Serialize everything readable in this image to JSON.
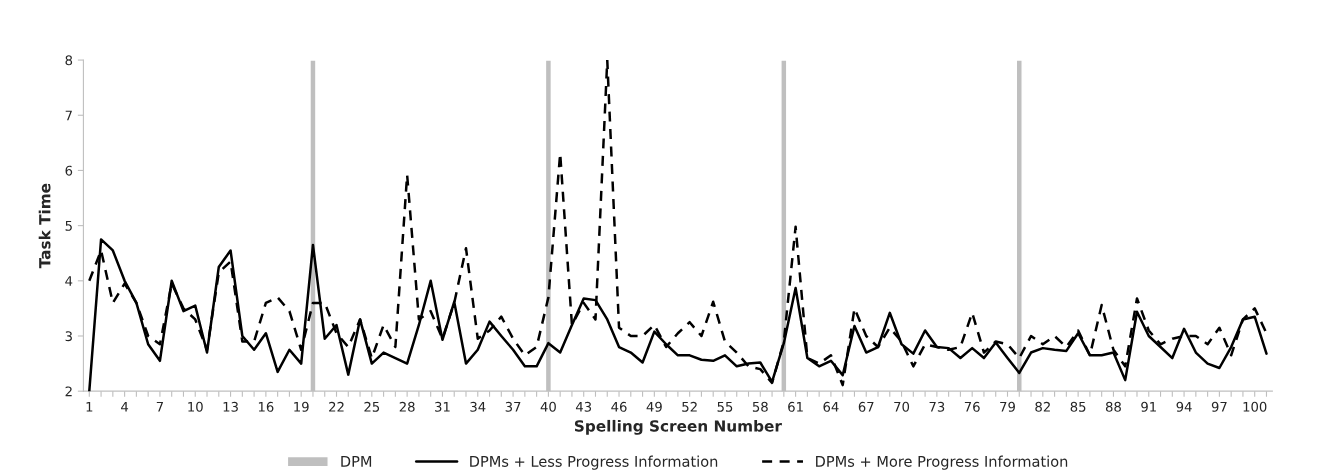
{
  "chart_data": {
    "type": "line",
    "xlabel": "Spelling Screen Number",
    "ylabel": "Task Time",
    "categories": [
      "1",
      null,
      null,
      "4",
      null,
      null,
      "7",
      null,
      null,
      "10",
      null,
      null,
      "13",
      null,
      null,
      "16",
      null,
      null,
      "19",
      null,
      null,
      "22",
      null,
      null,
      "25",
      null,
      null,
      "28",
      null,
      null,
      "31",
      null,
      null,
      "34",
      null,
      null,
      "37",
      null,
      null,
      "40",
      null,
      null,
      "43",
      null,
      null,
      "46",
      null,
      null,
      "49",
      null,
      null,
      "52",
      null,
      null,
      "55",
      null,
      null,
      "58",
      null,
      null,
      "61",
      null,
      null,
      "64",
      null,
      null,
      "67",
      null,
      null,
      "70",
      null,
      null,
      "73",
      null,
      null,
      "76",
      null,
      null,
      "79",
      null,
      null,
      "82",
      null,
      null,
      "85",
      null,
      null,
      "88",
      null,
      null,
      "91",
      null,
      null,
      "94",
      null,
      null,
      "97",
      null,
      null,
      "100",
      null
    ],
    "series": [
      {
        "name": "DPM",
        "type": "bar",
        "color": "#bfbfbf",
        "values": [
          null,
          null,
          null,
          null,
          null,
          null,
          null,
          null,
          null,
          null,
          null,
          null,
          null,
          null,
          null,
          null,
          null,
          null,
          null,
          8,
          null,
          null,
          null,
          null,
          null,
          null,
          null,
          null,
          null,
          null,
          null,
          null,
          null,
          null,
          null,
          null,
          null,
          null,
          null,
          8,
          null,
          null,
          null,
          null,
          null,
          null,
          null,
          null,
          null,
          null,
          null,
          null,
          null,
          null,
          null,
          null,
          null,
          null,
          null,
          8,
          null,
          null,
          null,
          null,
          null,
          null,
          null,
          null,
          null,
          null,
          null,
          null,
          null,
          null,
          null,
          null,
          null,
          null,
          null,
          8,
          null,
          null,
          null,
          null,
          null,
          null,
          null,
          null,
          null,
          null,
          null,
          null,
          null,
          null,
          null,
          null,
          null,
          null,
          null,
          null,
          null
        ]
      },
      {
        "name": "DPMs + Less Progress Information",
        "color": "#000000",
        "line_style": "solid",
        "values": [
          2.0,
          4.75,
          4.55,
          4.0,
          3.6,
          2.85,
          2.55,
          4.0,
          3.45,
          3.55,
          2.7,
          4.25,
          4.55,
          3.0,
          2.75,
          3.05,
          2.35,
          2.75,
          2.5,
          4.65,
          2.95,
          3.2,
          2.3,
          3.3,
          2.5,
          2.7,
          2.6,
          2.5,
          3.2,
          4.0,
          2.93,
          3.62,
          2.5,
          2.75,
          3.26,
          3.0,
          2.75,
          2.45,
          2.45,
          2.87,
          2.7,
          3.2,
          3.68,
          3.65,
          3.3,
          2.8,
          2.7,
          2.52,
          3.08,
          2.85,
          2.65,
          2.65,
          2.57,
          2.55,
          2.65,
          2.45,
          2.5,
          2.52,
          2.17,
          2.87,
          3.87,
          2.6,
          2.45,
          2.55,
          2.29,
          3.18,
          2.7,
          2.8,
          3.42,
          2.85,
          2.68,
          3.1,
          2.8,
          2.78,
          2.6,
          2.78,
          2.6,
          2.88,
          2.6,
          2.33,
          2.7,
          2.78,
          2.75,
          2.73,
          3.05,
          2.65,
          2.65,
          2.7,
          2.2,
          3.44,
          3.0,
          2.8,
          2.6,
          3.13,
          2.7,
          2.5,
          2.42,
          2.8,
          3.3,
          3.35,
          2.68
        ]
      },
      {
        "name": "DPMs + More Progress Information",
        "color": "#000000",
        "line_style": "dashed",
        "values": [
          4.0,
          4.55,
          3.6,
          3.95,
          3.6,
          3.0,
          2.85,
          3.95,
          3.5,
          3.3,
          2.75,
          4.15,
          4.35,
          2.9,
          2.9,
          3.6,
          3.7,
          3.45,
          2.75,
          3.6,
          3.6,
          3.05,
          2.8,
          3.3,
          2.6,
          3.2,
          2.8,
          5.92,
          3.3,
          3.45,
          2.95,
          3.6,
          4.59,
          2.95,
          3.1,
          3.35,
          2.95,
          2.65,
          2.8,
          3.7,
          6.31,
          3.2,
          3.6,
          3.3,
          8.0,
          3.15,
          3.0,
          3.0,
          3.2,
          2.8,
          3.05,
          3.25,
          3.0,
          3.62,
          2.9,
          2.7,
          2.45,
          2.4,
          2.15,
          2.9,
          4.98,
          2.6,
          2.5,
          2.65,
          2.11,
          3.5,
          3.0,
          2.8,
          3.15,
          2.9,
          2.45,
          2.85,
          2.8,
          2.75,
          2.8,
          3.42,
          2.7,
          2.9,
          2.85,
          2.6,
          3.0,
          2.85,
          3.0,
          2.8,
          3.1,
          2.65,
          3.56,
          2.75,
          2.45,
          3.68,
          3.1,
          2.85,
          2.95,
          3.0,
          3.0,
          2.85,
          3.15,
          2.65,
          3.3,
          3.5,
          3.05
        ]
      }
    ],
    "ylim": [
      2,
      8
    ],
    "yticks": [
      2,
      3,
      4,
      5,
      6,
      7,
      8
    ],
    "grid": false,
    "legend": "bottom"
  }
}
